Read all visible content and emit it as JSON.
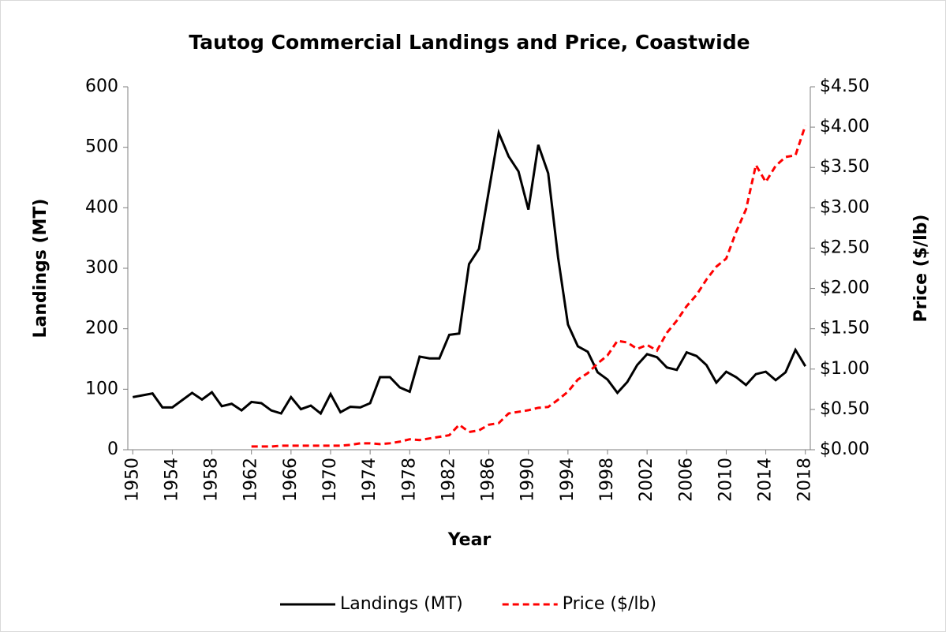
{
  "chart_data": {
    "type": "line",
    "title": "Tautog Commercial Landings and Price, Coastwide",
    "x_label": "Year",
    "y_label": "Landings (MT)",
    "y2_label": "Price ($/lb)",
    "x": [
      1950,
      1951,
      1952,
      1953,
      1954,
      1955,
      1956,
      1957,
      1958,
      1959,
      1960,
      1961,
      1962,
      1963,
      1964,
      1965,
      1966,
      1967,
      1968,
      1969,
      1970,
      1971,
      1972,
      1973,
      1974,
      1975,
      1976,
      1977,
      1978,
      1979,
      1980,
      1981,
      1982,
      1983,
      1984,
      1985,
      1986,
      1987,
      1988,
      1989,
      1990,
      1991,
      1992,
      1993,
      1994,
      1995,
      1996,
      1997,
      1998,
      1999,
      2000,
      2001,
      2002,
      2003,
      2004,
      2005,
      2006,
      2007,
      2008,
      2009,
      2010,
      2011,
      2012,
      2013,
      2014,
      2015,
      2016,
      2017,
      2018
    ],
    "xlim": [
      1949.5,
      2018.5
    ],
    "xticks": [
      1950,
      1954,
      1958,
      1962,
      1966,
      1970,
      1974,
      1978,
      1982,
      1986,
      1990,
      1994,
      1998,
      2002,
      2006,
      2010,
      2014,
      2018
    ],
    "ylim": [
      0,
      600
    ],
    "yticks": [
      0,
      100,
      200,
      300,
      400,
      500,
      600
    ],
    "y2lim": [
      0,
      4.5
    ],
    "y2ticks": [
      {
        "value": 0,
        "label": "$0.00"
      },
      {
        "value": 0.5,
        "label": "$0.50"
      },
      {
        "value": 1,
        "label": "$1.00"
      },
      {
        "value": 1.5,
        "label": "$1.50"
      },
      {
        "value": 2,
        "label": "$2.00"
      },
      {
        "value": 2.5,
        "label": "$2.50"
      },
      {
        "value": 3,
        "label": "$3.00"
      },
      {
        "value": 3.5,
        "label": "$3.50"
      },
      {
        "value": 4,
        "label": "$4.00"
      },
      {
        "value": 4.5,
        "label": "$4.50"
      }
    ],
    "grid": false,
    "legend": "bottom",
    "series": [
      {
        "name": "Landings (MT)",
        "color": "#000000",
        "dash": false,
        "values": [
          87,
          90,
          93,
          70,
          70,
          82,
          94,
          83,
          95,
          72,
          76,
          65,
          79,
          77,
          65,
          60,
          87,
          67,
          73,
          60,
          92,
          62,
          71,
          70,
          77,
          120,
          120,
          103,
          96,
          154,
          151,
          151,
          190,
          192,
          307,
          332,
          428,
          524,
          485,
          460,
          397,
          504,
          457,
          318,
          207,
          171,
          162,
          128,
          116,
          94,
          112,
          140,
          158,
          153,
          136,
          132,
          161,
          155,
          140,
          111,
          129,
          120,
          107,
          125,
          129,
          115,
          128,
          165,
          138
        ]
      },
      {
        "name": "Price ($/lb)",
        "color": "#ff0000",
        "dash": true,
        "axis": "y2",
        "values": [
          null,
          null,
          null,
          null,
          null,
          null,
          null,
          null,
          null,
          null,
          null,
          null,
          0.04,
          0.04,
          0.04,
          0.05,
          0.05,
          0.05,
          0.05,
          0.05,
          0.05,
          0.05,
          0.06,
          0.08,
          0.08,
          0.07,
          0.08,
          0.1,
          0.13,
          0.12,
          0.14,
          0.16,
          0.18,
          0.31,
          0.22,
          0.24,
          0.31,
          0.33,
          0.45,
          0.47,
          0.49,
          0.52,
          0.53,
          0.62,
          0.72,
          0.87,
          0.95,
          1.07,
          1.17,
          1.35,
          1.33,
          1.25,
          1.3,
          1.23,
          1.45,
          1.6,
          1.78,
          1.92,
          2.11,
          2.27,
          2.37,
          2.7,
          2.98,
          3.53,
          3.32,
          3.52,
          3.63,
          3.65,
          4.02
        ]
      }
    ]
  }
}
